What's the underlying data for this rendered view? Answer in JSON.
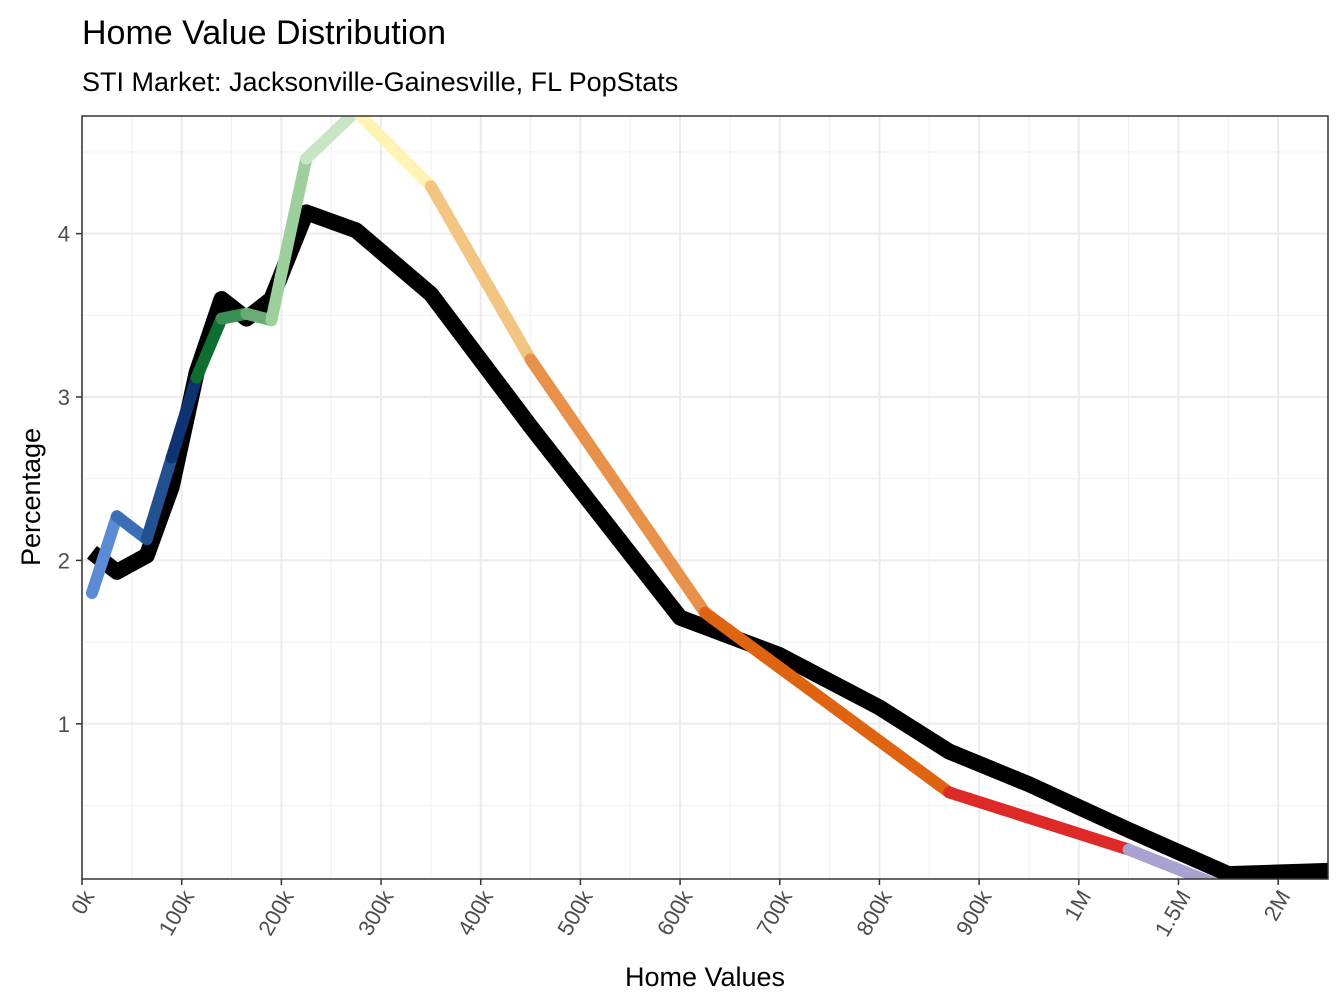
{
  "chart_data": {
    "type": "line",
    "title": "Home Value Distribution",
    "subtitle": "STI Market: Jacksonville-Gainesville, FL PopStats",
    "xlabel": "Home Values",
    "ylabel": "Percentage",
    "x_scale": "ordinal bins",
    "x_ticks": [
      "0k",
      "100k",
      "200k",
      "300k",
      "400k",
      "500k",
      "600k",
      "700k",
      "800k",
      "900k",
      "1M",
      "1.5M",
      "2M"
    ],
    "y_ticks": [
      1,
      2,
      3,
      4
    ],
    "ylim": [
      0.05,
      4.72
    ],
    "grid": true,
    "legend": "none",
    "series": [
      {
        "role": "baseline",
        "color": "#000000",
        "x": [
          0.1,
          0.35,
          0.65,
          0.9,
          1.15,
          1.4,
          1.65,
          1.9,
          2.25,
          2.75,
          3.5,
          4.5,
          6.0,
          7.0,
          8.0,
          8.7,
          9.5,
          10.5,
          11.5,
          12.5
        ],
        "values": [
          2.05,
          1.93,
          2.03,
          2.45,
          3.15,
          3.6,
          3.48,
          3.6,
          4.13,
          4.02,
          3.63,
          2.82,
          1.65,
          1.42,
          1.1,
          0.83,
          0.63,
          0.35,
          0.08,
          0.1
        ]
      },
      {
        "role": "market",
        "segments": [
          {
            "color": "#5b8bd4",
            "x": [
              0.1,
              0.35
            ],
            "values": [
              1.8,
              2.27
            ]
          },
          {
            "color": "#3c6eb8",
            "x": [
              0.35,
              0.65
            ],
            "values": [
              2.27,
              2.13
            ]
          },
          {
            "color": "#23508f",
            "x": [
              0.65,
              0.9
            ],
            "values": [
              2.13,
              2.63
            ]
          },
          {
            "color": "#0d3370",
            "x": [
              0.9,
              1.15
            ],
            "values": [
              2.63,
              3.12
            ]
          },
          {
            "color": "#0d6e2f",
            "x": [
              1.15,
              1.4
            ],
            "values": [
              3.12,
              3.48
            ]
          },
          {
            "color": "#3a8f55",
            "x": [
              1.4,
              1.65
            ],
            "values": [
              3.48,
              3.51
            ]
          },
          {
            "color": "#6aab75",
            "x": [
              1.65,
              1.9
            ],
            "values": [
              3.51,
              3.47
            ]
          },
          {
            "color": "#9dd09d",
            "x": [
              1.9,
              2.25
            ],
            "values": [
              3.47,
              4.46
            ]
          },
          {
            "color": "#c8e6c5",
            "x": [
              2.25,
              2.75
            ],
            "values": [
              4.46,
              4.75
            ]
          },
          {
            "color": "#fff4b3",
            "x": [
              2.75,
              3.5
            ],
            "values": [
              4.75,
              4.29
            ]
          },
          {
            "color": "#f2c583",
            "x": [
              3.5,
              4.5
            ],
            "values": [
              4.29,
              3.23
            ]
          },
          {
            "color": "#e8914a",
            "x": [
              4.5,
              6.25
            ],
            "values": [
              3.23,
              1.68
            ]
          },
          {
            "color": "#de6412",
            "x": [
              6.25,
              8.7
            ],
            "values": [
              1.68,
              0.58
            ]
          },
          {
            "color": "#dd2a28",
            "x": [
              8.7,
              10.5
            ],
            "values": [
              0.58,
              0.23
            ]
          },
          {
            "color": "#a7a2cf",
            "x": [
              10.5,
              11.45
            ],
            "values": [
              0.23,
              0.0
            ]
          },
          {
            "color": "#6f55a3",
            "x": [
              11.45,
              12.5
            ],
            "values": [
              0.0,
              0.0
            ]
          }
        ]
      }
    ]
  }
}
